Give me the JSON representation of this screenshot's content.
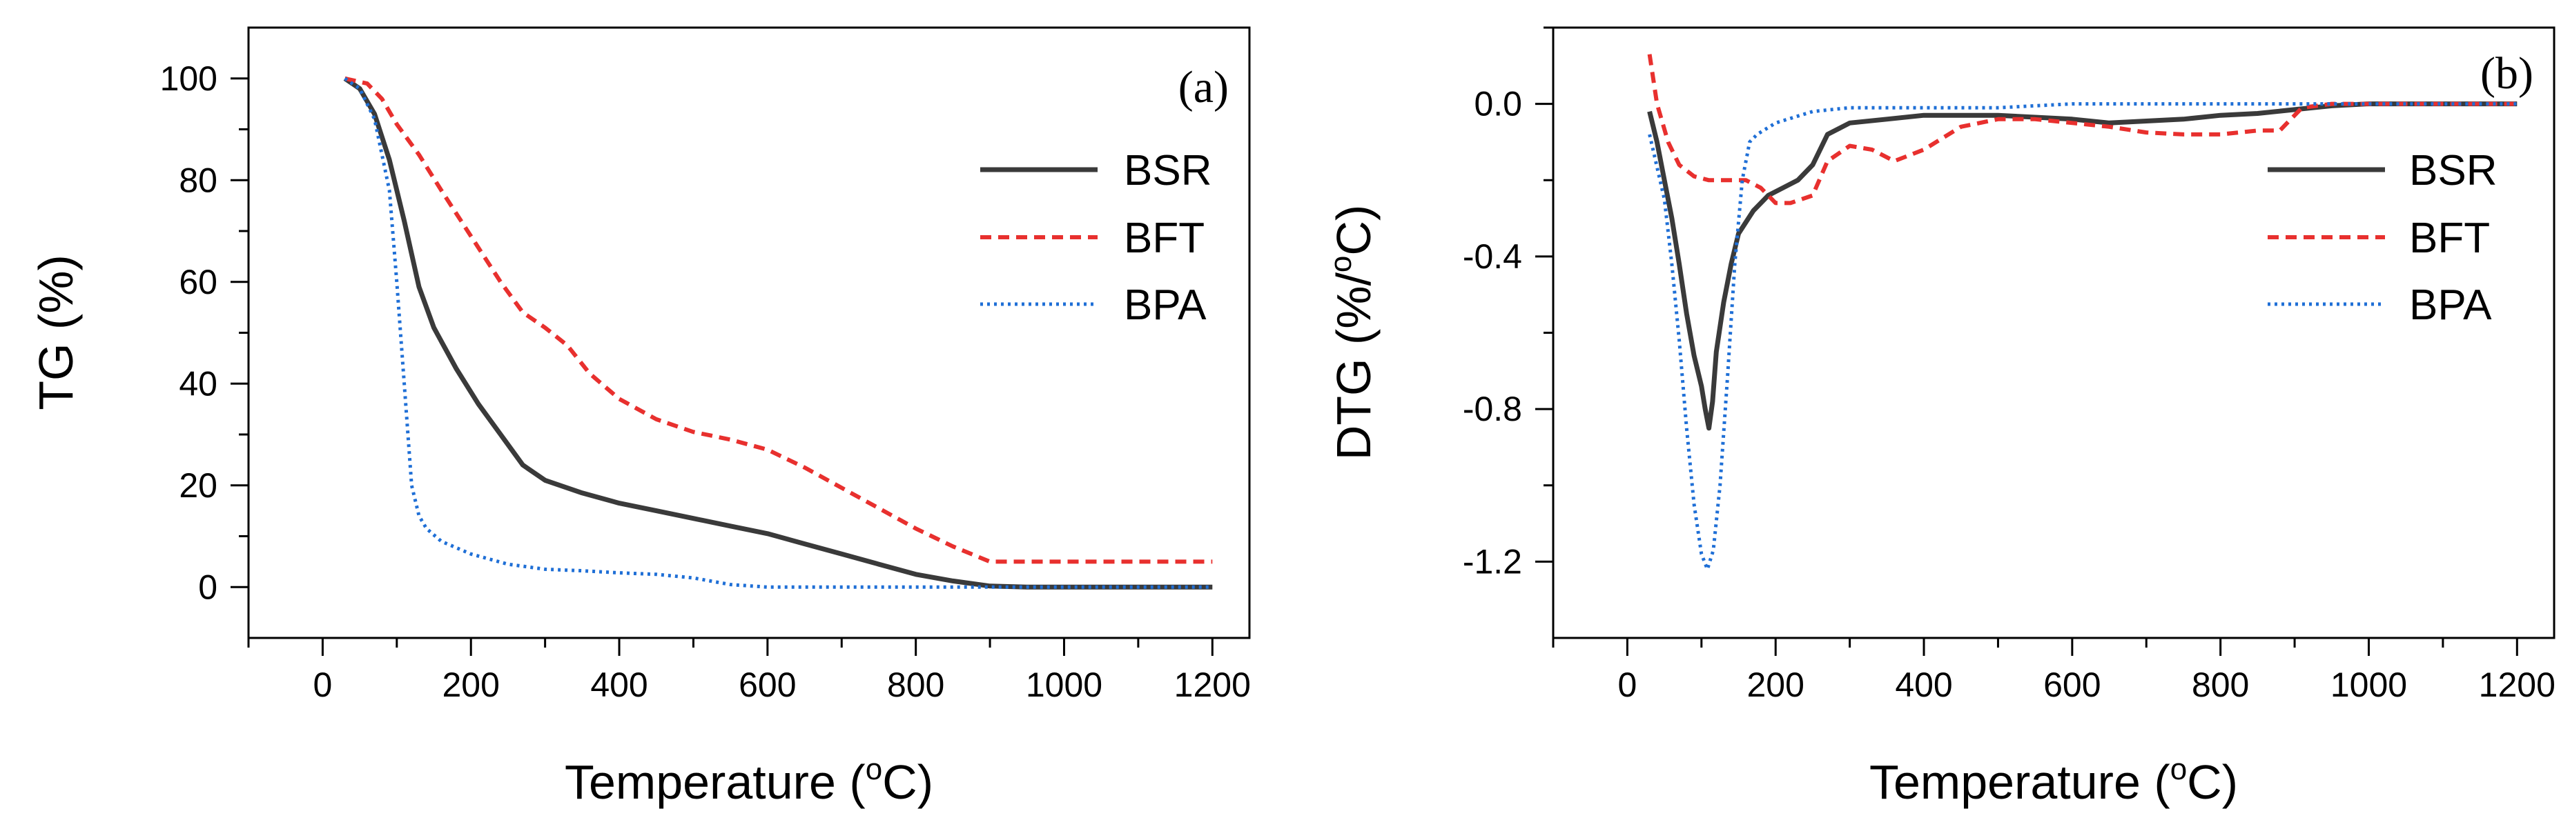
{
  "chart_data": [
    {
      "type": "line",
      "panel_label": "(a)",
      "xlabel": "Temperature",
      "xunit_prefix": "(",
      "xunit_sup": "o",
      "xunit_suffix": "C)",
      "ylabel": "TG (%)",
      "xlim": [
        -100,
        1250
      ],
      "ylim": [
        -10,
        110
      ],
      "xticks": [
        "0",
        "200",
        "400",
        "600",
        "800",
        "1000",
        "1200"
      ],
      "xtick_values": [
        0,
        200,
        400,
        600,
        800,
        1000,
        1200
      ],
      "yticks": [
        "0",
        "20",
        "40",
        "60",
        "80",
        "100"
      ],
      "ytick_values": [
        0,
        20,
        40,
        60,
        80,
        100
      ],
      "legend_position": "right",
      "series": [
        {
          "name": "BSR",
          "color": "#3a3a3a",
          "style": "solid",
          "x": [
            30,
            50,
            70,
            90,
            110,
            130,
            150,
            180,
            210,
            240,
            270,
            300,
            350,
            400,
            450,
            500,
            550,
            600,
            650,
            700,
            750,
            800,
            850,
            900,
            950,
            1000,
            1100,
            1200
          ],
          "y": [
            100,
            98,
            93,
            84,
            72,
            59,
            51,
            43,
            36,
            30,
            24,
            21,
            18.5,
            16.5,
            15,
            13.5,
            12,
            10.5,
            8.5,
            6.5,
            4.5,
            2.5,
            1.2,
            0.2,
            0,
            0,
            0,
            0
          ]
        },
        {
          "name": "BFT",
          "color": "#e8302e",
          "style": "dashed",
          "x": [
            30,
            60,
            80,
            100,
            130,
            160,
            200,
            240,
            270,
            300,
            330,
            360,
            400,
            450,
            500,
            550,
            600,
            650,
            700,
            750,
            800,
            850,
            900,
            910,
            1000,
            1100,
            1200
          ],
          "y": [
            100,
            99,
            96,
            91,
            85,
            78,
            69,
            60,
            54,
            51,
            47.5,
            42,
            37,
            33,
            30.5,
            29,
            27,
            23.5,
            19.5,
            15.5,
            11.5,
            8,
            5,
            5,
            5,
            5,
            5
          ]
        },
        {
          "name": "BPA",
          "color": "#1f6fd6",
          "style": "dotted",
          "x": [
            30,
            50,
            70,
            90,
            100,
            110,
            120,
            130,
            140,
            160,
            200,
            250,
            300,
            350,
            400,
            450,
            500,
            550,
            600,
            700,
            800,
            900,
            1000,
            1100,
            1200
          ],
          "y": [
            100,
            98,
            92,
            78,
            60,
            40,
            20,
            14,
            11.5,
            9,
            6.5,
            4.5,
            3.5,
            3.2,
            2.8,
            2.5,
            1.8,
            0.5,
            0,
            0,
            0,
            0,
            0,
            0,
            0
          ]
        }
      ]
    },
    {
      "type": "line",
      "panel_label": "(b)",
      "xlabel": "Temperature",
      "xunit_prefix": "(",
      "xunit_sup": "o",
      "xunit_suffix": "C)",
      "ylabel_prefix": "DTG (%/",
      "ylabel_sup": "o",
      "ylabel_suffix": "C)",
      "xlim": [
        -100,
        1250
      ],
      "ylim": [
        -1.4,
        0.2
      ],
      "xticks": [
        "0",
        "200",
        "400",
        "600",
        "800",
        "1000",
        "1200"
      ],
      "xtick_values": [
        0,
        200,
        400,
        600,
        800,
        1000,
        1200
      ],
      "yticks": [
        "0.0",
        "-0.4",
        "-0.8",
        "-1.2"
      ],
      "ytick_values": [
        0,
        -0.4,
        -0.8,
        -1.2
      ],
      "legend_position": "right",
      "series": [
        {
          "name": "BSR",
          "color": "#3a3a3a",
          "style": "solid",
          "x": [
            30,
            40,
            50,
            60,
            70,
            80,
            90,
            100,
            105,
            110,
            115,
            120,
            130,
            140,
            150,
            170,
            190,
            210,
            230,
            250,
            270,
            300,
            350,
            400,
            450,
            500,
            550,
            600,
            650,
            700,
            750,
            800,
            850,
            900,
            950,
            1000,
            1050,
            1100,
            1150,
            1200
          ],
          "y": [
            -0.02,
            -0.1,
            -0.2,
            -0.3,
            -0.42,
            -0.55,
            -0.66,
            -0.74,
            -0.8,
            -0.85,
            -0.78,
            -0.65,
            -0.52,
            -0.42,
            -0.34,
            -0.28,
            -0.24,
            -0.22,
            -0.2,
            -0.16,
            -0.08,
            -0.05,
            -0.04,
            -0.03,
            -0.03,
            -0.03,
            -0.035,
            -0.04,
            -0.05,
            -0.045,
            -0.04,
            -0.03,
            -0.025,
            -0.015,
            -0.005,
            0,
            0,
            0,
            0,
            0
          ]
        },
        {
          "name": "BFT",
          "color": "#e8302e",
          "style": "dashed",
          "x": [
            30,
            40,
            55,
            70,
            90,
            110,
            130,
            160,
            180,
            200,
            220,
            250,
            270,
            300,
            330,
            360,
            400,
            450,
            500,
            550,
            600,
            650,
            700,
            750,
            800,
            850,
            880,
            910,
            950,
            1000,
            1100,
            1200
          ],
          "y": [
            0.13,
            0,
            -0.1,
            -0.16,
            -0.19,
            -0.2,
            -0.2,
            -0.2,
            -0.22,
            -0.26,
            -0.26,
            -0.24,
            -0.15,
            -0.11,
            -0.12,
            -0.15,
            -0.12,
            -0.06,
            -0.04,
            -0.04,
            -0.05,
            -0.06,
            -0.075,
            -0.08,
            -0.08,
            -0.07,
            -0.07,
            -0.01,
            0,
            0,
            0,
            0
          ]
        },
        {
          "name": "BPA",
          "color": "#1f6fd6",
          "style": "dotted",
          "x": [
            30,
            50,
            60,
            70,
            80,
            90,
            100,
            108,
            116,
            125,
            135,
            145,
            155,
            165,
            175,
            200,
            250,
            300,
            350,
            400,
            500,
            600,
            700,
            800,
            900,
            1000,
            1100,
            1200
          ],
          "y": [
            -0.08,
            -0.25,
            -0.42,
            -0.62,
            -0.85,
            -1.05,
            -1.18,
            -1.22,
            -1.17,
            -1.0,
            -0.72,
            -0.42,
            -0.2,
            -0.1,
            -0.08,
            -0.05,
            -0.02,
            -0.01,
            -0.01,
            -0.01,
            -0.01,
            0,
            0,
            0,
            0,
            0,
            0,
            0
          ]
        }
      ]
    }
  ]
}
